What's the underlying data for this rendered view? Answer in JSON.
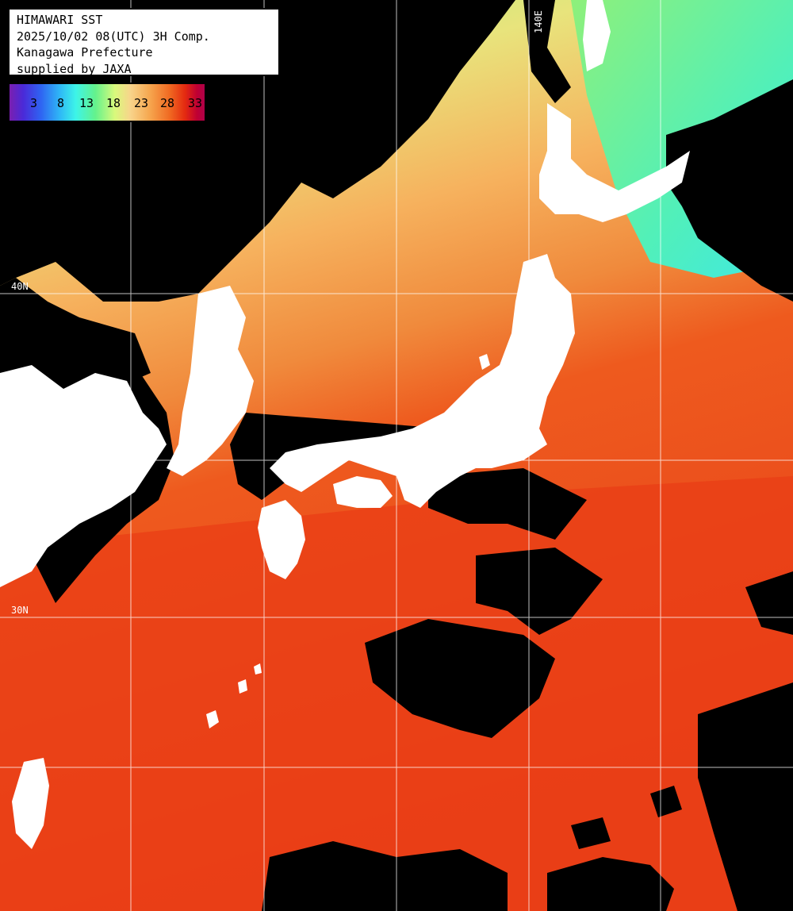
{
  "header": {
    "title": "HIMAWARI SST",
    "datetime": "2025/10/02 08(UTC) 3H Comp.",
    "region": "Kanagawa Prefecture",
    "credit": "supplied by JAXA"
  },
  "legend": {
    "ticks": [
      "3",
      "8",
      "13",
      "18",
      "23",
      "28",
      "33"
    ],
    "colors": [
      "#7a1fb0",
      "#2f63f2",
      "#3df4e8",
      "#64f28c",
      "#f8d48b",
      "#f06a22",
      "#c00032"
    ]
  },
  "grid": {
    "lon_label": "140E",
    "lat_label_upper": "40N",
    "lat_label_lower": "30N"
  },
  "colors": {
    "land": "#ffffff",
    "cloud_no_data": "#000000",
    "gridline": "#ffffff",
    "sst_cold": "#3df4e8",
    "sst_cool": "#a8f07a",
    "sst_mid": "#f6b46a",
    "sst_warm": "#f0501a"
  }
}
